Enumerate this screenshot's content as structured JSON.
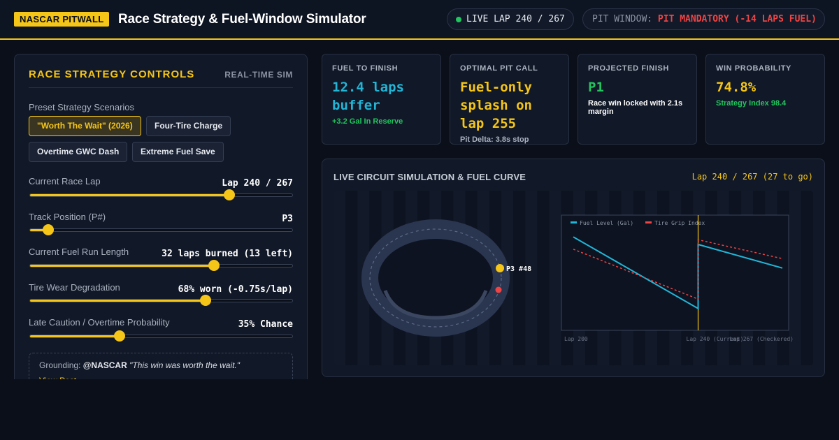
{
  "header": {
    "brand": "NASCAR PITWALL",
    "title": "Race Strategy & Fuel-Window Simulator",
    "live_status": "LIVE LAP 240 / 267",
    "pit_window_label": "PIT WINDOW:",
    "pit_window_value": "PIT MANDATORY (-14 LAPS FUEL)"
  },
  "controls": {
    "title": "RACE STRATEGY CONTROLS",
    "badge": "REAL-TIME SIM",
    "presets_label": "Preset Strategy Scenarios",
    "presets": [
      {
        "label": "\"Worth The Wait\" (2026)",
        "active": true
      },
      {
        "label": "Four-Tire Charge",
        "active": false
      },
      {
        "label": "Overtime GWC Dash",
        "active": false
      },
      {
        "label": "Extreme Fuel Save",
        "active": false
      }
    ],
    "sliders": [
      {
        "label": "Current Race Lap",
        "value": "Lap 240 / 267",
        "fraction": 0.76
      },
      {
        "label": "Track Position (P#)",
        "value": "P3",
        "fraction": 0.07
      },
      {
        "label": "Current Fuel Run Length",
        "value": "32 laps burned (13 left)",
        "fraction": 0.7
      },
      {
        "label": "Tire Wear Degradation",
        "value": "68% worn (-0.75s/lap)",
        "fraction": 0.67
      },
      {
        "label": "Late Caution / Overtime Probability",
        "value": "35% Chance",
        "fraction": 0.34
      }
    ],
    "grounding": {
      "prefix": "Grounding:",
      "handle": "@NASCAR",
      "quote": "\"This win was worth the wait.\"",
      "link": "View Post"
    }
  },
  "stats": [
    {
      "label": "FUEL TO FINISH",
      "value": "12.4 laps buffer",
      "sub": "+3.2 Gal In Reserve",
      "value_color": "#22b5d6",
      "sub_color": "#22c55e"
    },
    {
      "label": "OPTIMAL PIT CALL",
      "value": "Fuel-only splash on lap 255",
      "sub": "Pit Delta: 3.8s stop",
      "value_color": "#f5c518",
      "sub_color": "#aab2c0"
    },
    {
      "label": "PROJECTED FINISH",
      "value": "P1",
      "sub": "Race win locked with 2.1s margin",
      "value_color": "#22c55e",
      "sub_color": "#ffffff"
    },
    {
      "label": "WIN PROBABILITY",
      "value": "74.8%",
      "sub": "Strategy Index 98.4",
      "value_color": "#f5c518",
      "sub_color": "#22c55e"
    }
  ],
  "simulation": {
    "title": "LIVE CIRCUIT SIMULATION & FUEL CURVE",
    "lap_info": "Lap 240 / 267 (27 to go)",
    "car_label": "P3 #48",
    "chart_data": {
      "type": "line",
      "x_ticks": [
        "Lap 200",
        "Lap 240 (Current)",
        "Lap 267 (Checkered)"
      ],
      "xlim": [
        200,
        267
      ],
      "ylim": [
        0,
        100
      ],
      "current_lap": 240,
      "series": [
        {
          "name": "Fuel Level (Gal)",
          "color": "#22b5d6",
          "style": "solid",
          "x": [
            200,
            240,
            240,
            267
          ],
          "y": [
            88,
            12,
            80,
            55
          ]
        },
        {
          "name": "Tire Grip Index",
          "color": "#ef4444",
          "style": "dashed",
          "x": [
            200,
            240,
            240,
            267
          ],
          "y": [
            75,
            22,
            85,
            65
          ]
        }
      ]
    }
  },
  "colors": {
    "accent": "#f5c518",
    "danger": "#ef4444",
    "success": "#22c55e",
    "info": "#22b5d6"
  }
}
